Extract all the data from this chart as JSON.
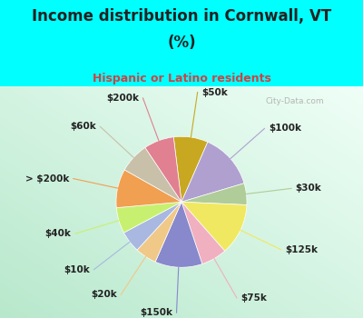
{
  "title_line1": "Income distribution in Cornwall, VT",
  "title_line2": "(%)",
  "subtitle": "Hispanic or Latino residents",
  "bg_top": "#00FFFF",
  "bg_chart_color": "#c8ecd8",
  "title_color": "#222222",
  "subtitle_color": "#cc4444",
  "segments": [
    {
      "label": "$50k",
      "value": 8,
      "color": "#c8a820"
    },
    {
      "label": "$100k",
      "value": 13,
      "color": "#b0a0d0"
    },
    {
      "label": "$30k",
      "value": 5,
      "color": "#b0cc98"
    },
    {
      "label": "$125k",
      "value": 12,
      "color": "#f0e860"
    },
    {
      "label": "$75k",
      "value": 6,
      "color": "#f0b0c0"
    },
    {
      "label": "$150k",
      "value": 11,
      "color": "#8888cc"
    },
    {
      "label": "$20k",
      "value": 5,
      "color": "#f0c888"
    },
    {
      "label": "$10k",
      "value": 5,
      "color": "#a8b8e0"
    },
    {
      "label": "$40k",
      "value": 6,
      "color": "#c8f070"
    },
    {
      "label": "> $200k",
      "value": 9,
      "color": "#f0a050"
    },
    {
      "label": "$60k",
      "value": 7,
      "color": "#c8c0a8"
    },
    {
      "label": "$200k",
      "value": 7,
      "color": "#e08090"
    }
  ],
  "startangle": 97,
  "label_fontsize": 7.5,
  "watermark": "City-Data.com"
}
